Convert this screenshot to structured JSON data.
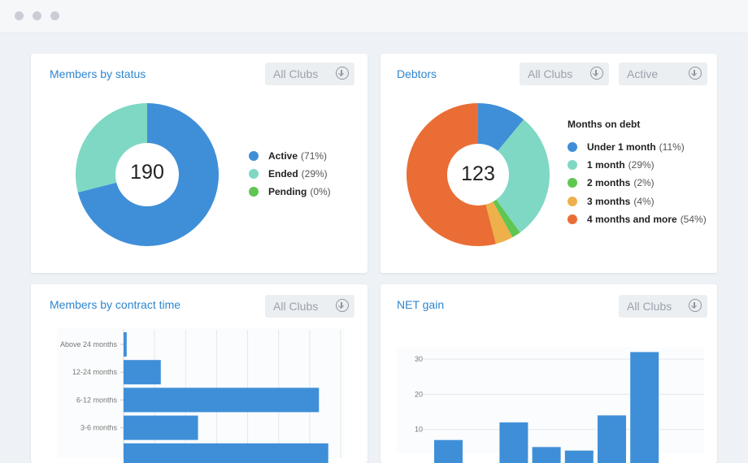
{
  "window": {
    "controls": [
      "close",
      "minimize",
      "maximize"
    ]
  },
  "members_by_status": {
    "title": "Members by status",
    "filter": "All Clubs",
    "total": "190",
    "legend": [
      {
        "label": "Active",
        "pct": "(71%)",
        "color": "#3f8fd8"
      },
      {
        "label": "Ended",
        "pct": "(29%)",
        "color": "#7fd8c4"
      },
      {
        "label": "Pending",
        "pct": "(0%)",
        "color": "#5fc651"
      }
    ]
  },
  "debtors": {
    "title": "Debtors",
    "filter_clubs": "All Clubs",
    "filter_status": "Active",
    "total": "123",
    "legend_title": "Months on debt",
    "legend": [
      {
        "label": "Under 1 month",
        "pct": "(11%)",
        "color": "#3f8fd8"
      },
      {
        "label": "1 month",
        "pct": "(29%)",
        "color": "#7fd8c4"
      },
      {
        "label": "2 months",
        "pct": "(2%)",
        "color": "#5fc651"
      },
      {
        "label": "3 months",
        "pct": "(4%)",
        "color": "#eeb04a"
      },
      {
        "label": "4 months and more",
        "pct": "(54%)",
        "color": "#ea6d35"
      }
    ]
  },
  "contract_time": {
    "title": "Members by contract time",
    "filter": "All Clubs"
  },
  "net_gain": {
    "title": "NET gain",
    "filter": "All Clubs"
  },
  "chart_data": [
    {
      "type": "pie",
      "categories": [
        "Active",
        "Ended",
        "Pending"
      ],
      "values": [
        71,
        29,
        0
      ],
      "colors": [
        "#3f8fd8",
        "#7fd8c4",
        "#5fc651"
      ],
      "center_label": "190",
      "style": "donut"
    },
    {
      "type": "pie",
      "categories": [
        "Under 1 month",
        "1 month",
        "2 months",
        "3 months",
        "4 months and more"
      ],
      "values": [
        11,
        29,
        2,
        4,
        54
      ],
      "colors": [
        "#3f8fd8",
        "#7fd8c4",
        "#5fc651",
        "#eeb04a",
        "#ea6d35"
      ],
      "center_label": "123",
      "style": "donut"
    },
    {
      "type": "bar",
      "orientation": "horizontal",
      "categories": [
        "Above 24 months",
        "12-24 months",
        "6-12 months",
        "3-6 months",
        ""
      ],
      "values": [
        1,
        12,
        63,
        24,
        66
      ],
      "xlim": [
        0,
        70
      ],
      "bar_color": "#3f8fd8",
      "grid": true
    },
    {
      "type": "bar",
      "y_ticks": [
        10,
        20,
        30
      ],
      "values": [
        7,
        0,
        12,
        5,
        4,
        14,
        32
      ],
      "ylim": [
        0,
        33
      ],
      "bar_color": "#3f8fd8",
      "grid": true
    }
  ]
}
